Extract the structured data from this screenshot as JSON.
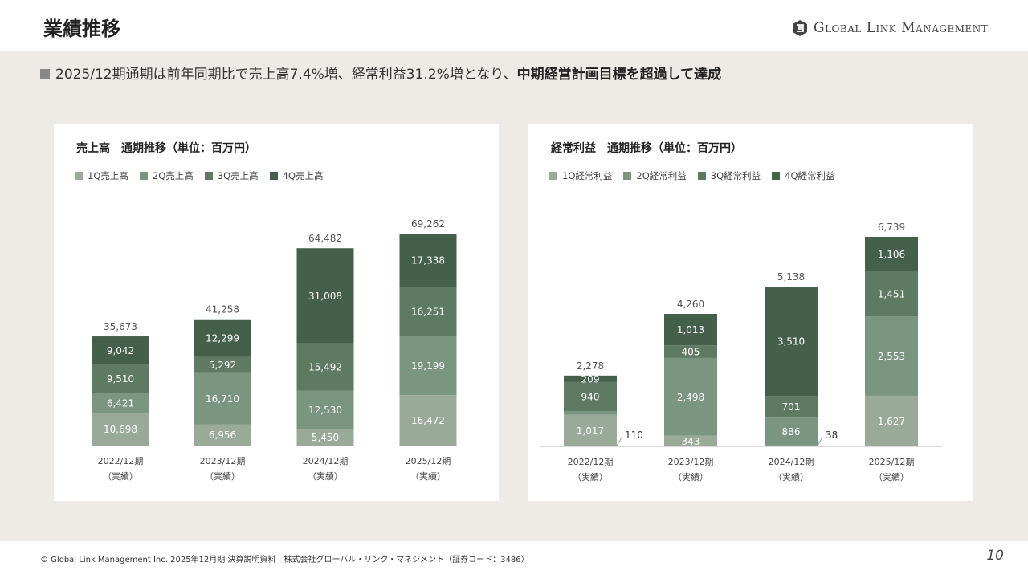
{
  "header": {
    "title": "業績推移",
    "logo_text": "Global Link Management"
  },
  "lead": {
    "text": "2025/12期通期は前年同期比で売上高7.4%増、経常利益31.2%増となり、",
    "bold": "中期経営計画目標を超過して達成"
  },
  "colors": {
    "q1": "#9aaa98",
    "q2": "#7a9580",
    "q3": "#5e7a63",
    "q4": "#44604a"
  },
  "chart_data": [
    {
      "type": "bar",
      "stacked": true,
      "title": "売上高　通期推移（単位：百万円）",
      "categories": [
        [
          "2022/12期",
          "（実績）"
        ],
        [
          "2023/12期",
          "（実績）"
        ],
        [
          "2024/12期",
          "（実績）"
        ],
        [
          "2025/12期",
          "（実績）"
        ]
      ],
      "series": [
        {
          "name": "1Q売上高",
          "values": [
            10698,
            6956,
            5450,
            16472
          ]
        },
        {
          "name": "2Q売上高",
          "values": [
            6421,
            16710,
            12530,
            19199
          ]
        },
        {
          "name": "3Q売上高",
          "values": [
            9510,
            5292,
            15492,
            16251
          ]
        },
        {
          "name": "4Q売上高",
          "values": [
            9042,
            12299,
            31008,
            17338
          ]
        }
      ],
      "totals": [
        "35,673",
        "41,258",
        "64,482",
        "69,262"
      ],
      "legend": "top-left",
      "grid": false
    },
    {
      "type": "bar",
      "stacked": true,
      "title": "経常利益　通期推移（単位：百万円）",
      "categories": [
        [
          "2022/12期",
          "（実績）"
        ],
        [
          "2023/12期",
          "（実績）"
        ],
        [
          "2024/12期",
          "（実績）"
        ],
        [
          "2025/12期",
          "（実績）"
        ]
      ],
      "series": [
        {
          "name": "1Q経常利益",
          "values": [
            1017,
            343,
            38,
            1627
          ]
        },
        {
          "name": "2Q経常利益",
          "values": [
            110,
            2498,
            886,
            2553
          ]
        },
        {
          "name": "3Q経常利益",
          "values": [
            940,
            405,
            701,
            1451
          ]
        },
        {
          "name": "4Q経常利益",
          "values": [
            209,
            1013,
            3510,
            1106
          ]
        }
      ],
      "totals": [
        "2,278",
        "4,260",
        "5,138",
        "6,739"
      ],
      "legend": "top-left",
      "grid": false
    }
  ],
  "footer": {
    "text": "© Global Link Management Inc. 2025年12月期 決算説明資料　株式会社グローバル・リンク・マネジメント（証券コード：3486）",
    "page": "10"
  }
}
